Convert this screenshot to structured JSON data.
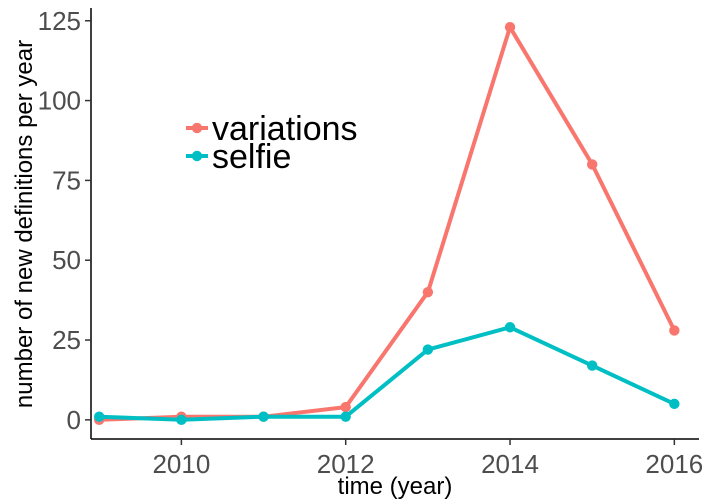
{
  "chart_data": {
    "type": "line",
    "xlabel": "time (year)",
    "ylabel": "number of new definitions per year",
    "x": [
      2009,
      2010,
      2011,
      2012,
      2013,
      2014,
      2015,
      2016
    ],
    "xticks": [
      2010,
      2012,
      2014,
      2016
    ],
    "yticks": [
      0,
      25,
      50,
      75,
      100,
      125
    ],
    "xlim": [
      2008.9,
      2016.3
    ],
    "ylim": [
      -6,
      129
    ],
    "grid": false,
    "legend_position": "top-left",
    "series": [
      {
        "name": "variations",
        "color": "#F8766D",
        "values": [
          0,
          1,
          1,
          4,
          40,
          123,
          80,
          28
        ]
      },
      {
        "name": "selfie",
        "color": "#00BFC4",
        "values": [
          1,
          0,
          1,
          1,
          22,
          29,
          17,
          5
        ]
      }
    ]
  }
}
